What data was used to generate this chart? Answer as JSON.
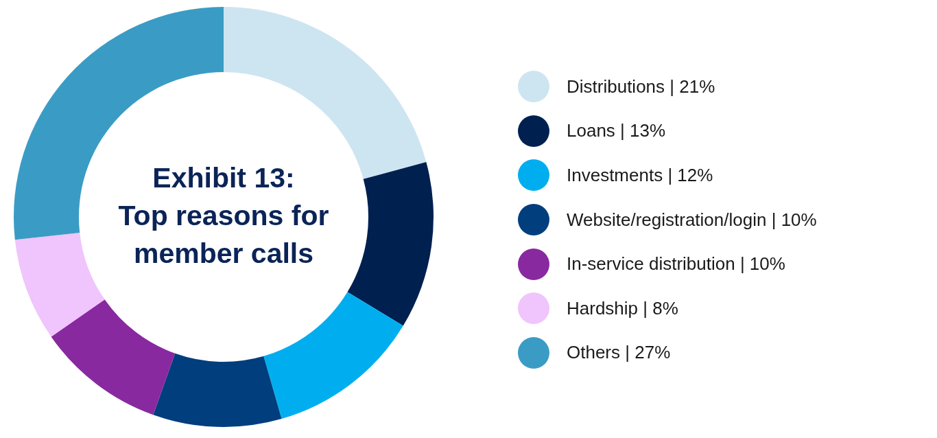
{
  "chart_data": {
    "type": "donut",
    "title": "Exhibit 13:\nTop reasons for member calls",
    "categories": [
      "Distributions | 21%",
      "Loans | 13%",
      "Investments | 12%",
      "Website/registration/login | 10%",
      "In-service distribution | 10%",
      "Hardship | 8%",
      "Others | 27%"
    ],
    "values": [
      21,
      13,
      12,
      10,
      10,
      8,
      27
    ],
    "colors": [
      "#cde5f0",
      "#002050",
      "#00aeef",
      "#003e7e",
      "#8829a0",
      "#f0c4fc",
      "#3a9cc5"
    ],
    "legend": "right"
  }
}
